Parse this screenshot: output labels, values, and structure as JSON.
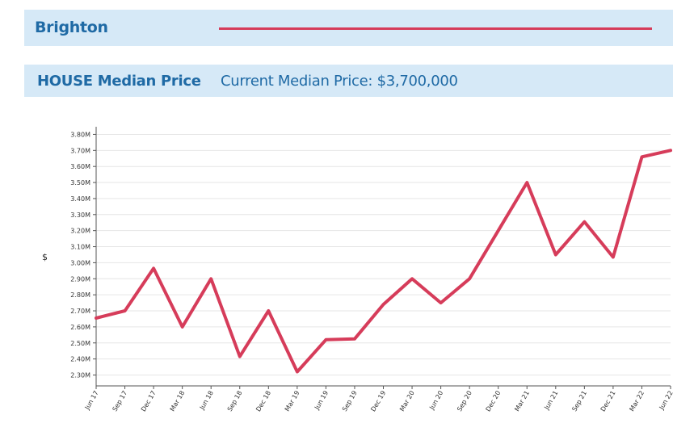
{
  "header": {
    "suburb": "Brighton",
    "accent_color": "#d63c5a",
    "banner_color": "#d6e9f7",
    "title_color": "#1f6aa5"
  },
  "price_banner": {
    "property_type_title": "HOUSE Median Price",
    "current_median": "Current Median Price: $3,700,000"
  },
  "chart_data": {
    "type": "line",
    "ylabel": "$",
    "xlabel": "",
    "title": "",
    "grid": true,
    "ylim": [
      2.26,
      3.85
    ],
    "y_ticks": [
      2.3,
      2.4,
      2.5,
      2.6,
      2.7,
      2.8,
      2.9,
      3.0,
      3.1,
      3.2,
      3.3,
      3.4,
      3.5,
      3.6,
      3.7,
      3.8
    ],
    "y_tick_labels": [
      "2.30M",
      "2.40M",
      "2.50M",
      "2.60M",
      "2.70M",
      "2.80M",
      "2.90M",
      "3.00M",
      "3.10M",
      "3.20M",
      "3.30M",
      "3.40M",
      "3.50M",
      "3.60M",
      "3.70M",
      "3.80M"
    ],
    "categories": [
      "Jun 17",
      "Sep 17",
      "Dec 17",
      "Mar 18",
      "Jun 18",
      "Sep 18",
      "Dec 18",
      "Mar 19",
      "Jun 19",
      "Sep 19",
      "Dec 19",
      "Mar 20",
      "Jun 20",
      "Sep 20",
      "Dec 20",
      "Mar 21",
      "Jun 21",
      "Sep 21",
      "Dec 21",
      "Mar 22",
      "Jun 22"
    ],
    "series": [
      {
        "color": "#d63c5a",
        "values": [
          2.655,
          2.7,
          2.965,
          2.6,
          2.9,
          2.415,
          2.7,
          2.32,
          2.52,
          2.525,
          2.74,
          2.9,
          2.75,
          2.9,
          3.2,
          3.5,
          3.05,
          3.255,
          3.035,
          3.66,
          3.7
        ]
      }
    ]
  }
}
